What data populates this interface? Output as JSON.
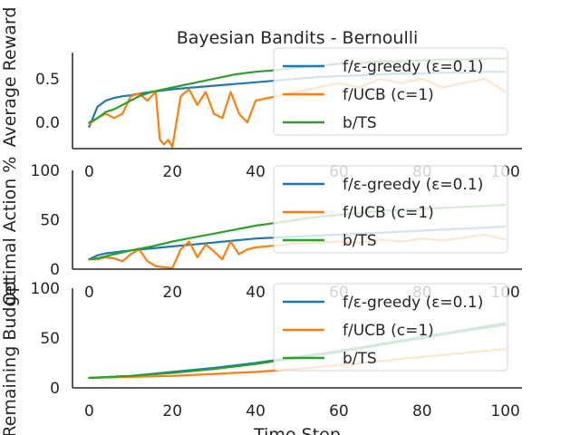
{
  "figure": {
    "title": "Bayesian Bandits - Bernoulli",
    "xlabel": "Time Step"
  },
  "chart_data": [
    {
      "type": "line",
      "ylabel": "Average Reward",
      "xlim": [
        -4,
        104
      ],
      "ylim": [
        -0.3,
        0.8
      ],
      "xticks": [
        0,
        20,
        40,
        60,
        80,
        100
      ],
      "yticks": [
        0.0,
        0.5
      ],
      "grid": false,
      "legend_position": "top-right",
      "series": [
        {
          "name": "f/ε-greedy (ε=0.1)",
          "color": "#1f77b4",
          "x": [
            0,
            2,
            4,
            6,
            8,
            10,
            12,
            15,
            20,
            25,
            30,
            35,
            40,
            45,
            50,
            55,
            60,
            65,
            70,
            75,
            80,
            85,
            90,
            95,
            100
          ],
          "y": [
            -0.05,
            0.18,
            0.25,
            0.28,
            0.3,
            0.31,
            0.33,
            0.35,
            0.38,
            0.4,
            0.42,
            0.44,
            0.46,
            0.48,
            0.5,
            0.52,
            0.53,
            0.54,
            0.55,
            0.56,
            0.56,
            0.57,
            0.57,
            0.58,
            0.58
          ]
        },
        {
          "name": "f/UCB (c=1)",
          "color": "#ff7f0e",
          "x": [
            0,
            2,
            4,
            6,
            8,
            10,
            12,
            14,
            16,
            17,
            18,
            19,
            20,
            22,
            24,
            26,
            28,
            30,
            32,
            34,
            36,
            38,
            40,
            45,
            50,
            55,
            60,
            65,
            70,
            75,
            80,
            85,
            90,
            95,
            100
          ],
          "y": [
            -0.02,
            0.05,
            0.1,
            0.05,
            0.1,
            0.3,
            0.33,
            0.25,
            0.35,
            -0.2,
            -0.25,
            -0.2,
            -0.28,
            0.3,
            0.38,
            0.2,
            0.35,
            0.1,
            0.05,
            0.35,
            0.1,
            0.0,
            0.25,
            0.3,
            0.35,
            0.4,
            0.45,
            0.4,
            0.5,
            0.45,
            0.5,
            0.4,
            0.45,
            0.5,
            0.35
          ]
        },
        {
          "name": "b/TS",
          "color": "#2ca02c",
          "x": [
            0,
            2,
            4,
            6,
            8,
            10,
            12,
            15,
            20,
            25,
            30,
            35,
            40,
            45,
            50,
            55,
            60,
            65,
            70,
            75,
            80,
            85,
            90,
            95,
            100
          ],
          "y": [
            0.0,
            0.05,
            0.12,
            0.15,
            0.2,
            0.25,
            0.3,
            0.35,
            0.4,
            0.45,
            0.5,
            0.55,
            0.58,
            0.6,
            0.63,
            0.65,
            0.67,
            0.68,
            0.7,
            0.7,
            0.71,
            0.72,
            0.72,
            0.73,
            0.73
          ]
        }
      ]
    },
    {
      "type": "line",
      "ylabel": "Optimal Action %",
      "xlim": [
        -4,
        104
      ],
      "ylim": [
        0,
        100
      ],
      "xticks": [
        0,
        20,
        40,
        60,
        80,
        100
      ],
      "yticks": [
        0,
        50,
        100
      ],
      "grid": false,
      "legend_position": "top-right",
      "series": [
        {
          "name": "f/ε-greedy (ε=0.1)",
          "color": "#1f77b4",
          "x": [
            0,
            2,
            4,
            6,
            8,
            10,
            15,
            20,
            25,
            30,
            35,
            40,
            45,
            50,
            55,
            60,
            65,
            70,
            75,
            80,
            85,
            90,
            95,
            100
          ],
          "y": [
            10,
            14,
            16,
            17,
            18,
            19,
            21,
            23,
            25,
            27,
            29,
            31,
            32,
            33,
            34,
            35,
            36,
            37,
            38,
            39,
            40,
            41,
            42,
            43
          ]
        },
        {
          "name": "f/UCB (c=1)",
          "color": "#ff7f0e",
          "x": [
            0,
            2,
            4,
            6,
            8,
            10,
            12,
            14,
            16,
            18,
            20,
            22,
            24,
            26,
            28,
            30,
            32,
            34,
            36,
            38,
            40,
            45,
            50,
            55,
            60,
            65,
            70,
            75,
            80,
            85,
            90,
            95,
            100
          ],
          "y": [
            10,
            10,
            12,
            11,
            8,
            15,
            20,
            8,
            3,
            2,
            1,
            20,
            28,
            12,
            25,
            18,
            10,
            28,
            15,
            20,
            22,
            24,
            26,
            27,
            28,
            27,
            30,
            28,
            31,
            29,
            32,
            35,
            30
          ]
        },
        {
          "name": "b/TS",
          "color": "#2ca02c",
          "x": [
            0,
            2,
            4,
            6,
            8,
            10,
            15,
            20,
            25,
            30,
            35,
            40,
            45,
            50,
            55,
            60,
            65,
            70,
            75,
            80,
            85,
            90,
            95,
            100
          ],
          "y": [
            10,
            11,
            13,
            15,
            17,
            19,
            23,
            28,
            32,
            36,
            40,
            44,
            47,
            50,
            53,
            55,
            57,
            59,
            60,
            61,
            62,
            63,
            64,
            65
          ]
        }
      ]
    },
    {
      "type": "line",
      "ylabel": "Remaining Budget",
      "xlim": [
        -4,
        104
      ],
      "ylim": [
        0,
        100
      ],
      "xticks": [
        0,
        20,
        40,
        60,
        80,
        100
      ],
      "yticks": [
        0,
        50,
        100
      ],
      "grid": false,
      "legend_position": "top-right",
      "series": [
        {
          "name": "f/ε-greedy (ε=0.1)",
          "color": "#1f77b4",
          "x": [
            0,
            10,
            20,
            30,
            40,
            50,
            60,
            70,
            80,
            90,
            100
          ],
          "y": [
            10,
            12,
            16,
            20,
            25,
            31,
            37,
            44,
            51,
            58,
            65
          ]
        },
        {
          "name": "f/UCB (c=1)",
          "color": "#ff7f0e",
          "x": [
            0,
            10,
            20,
            30,
            40,
            50,
            60,
            70,
            80,
            90,
            100
          ],
          "y": [
            10,
            11,
            12,
            14,
            16,
            19,
            23,
            27,
            31,
            35,
            39
          ]
        },
        {
          "name": "b/TS",
          "color": "#2ca02c",
          "x": [
            0,
            10,
            20,
            30,
            40,
            50,
            60,
            70,
            80,
            90,
            100
          ],
          "y": [
            10,
            12,
            15,
            19,
            24,
            30,
            36,
            43,
            50,
            57,
            63
          ]
        }
      ]
    }
  ]
}
